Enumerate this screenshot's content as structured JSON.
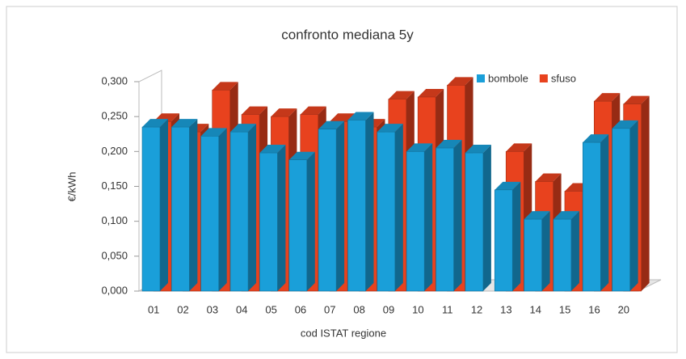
{
  "chart_data": {
    "type": "bar3d",
    "title": "confronto mediana 5y",
    "x_label": "cod ISTAT regione",
    "y_label": "€/kWh",
    "categories": [
      "01",
      "02",
      "03",
      "04",
      "05",
      "06",
      "07",
      "08",
      "09",
      "10",
      "11",
      "12",
      "13",
      "14",
      "15",
      "16",
      "20"
    ],
    "series": [
      {
        "name": "bombole",
        "color": "#1a9fd9",
        "values": [
          0.235,
          0.235,
          0.222,
          0.228,
          0.198,
          0.188,
          0.232,
          0.245,
          0.228,
          0.2,
          0.205,
          0.198,
          0.145,
          0.103,
          0.103,
          0.213,
          0.233
        ]
      },
      {
        "name": "sfuso",
        "color": "#e8421e",
        "values": [
          0.243,
          0.228,
          0.288,
          0.253,
          0.25,
          0.253,
          0.243,
          0.235,
          0.275,
          0.278,
          0.295,
          null,
          0.2,
          0.157,
          0.143,
          0.272,
          0.268
        ]
      }
    ],
    "ylim": [
      0,
      0.3
    ],
    "yticks": [
      {
        "value": 0,
        "label": "0,000"
      },
      {
        "value": 0.05,
        "label": "0,050"
      },
      {
        "value": 0.1,
        "label": "0,100"
      },
      {
        "value": 0.15,
        "label": "0,150"
      },
      {
        "value": 0.2,
        "label": "0,200"
      },
      {
        "value": 0.25,
        "label": "0,250"
      },
      {
        "value": 0.3,
        "label": "0,300"
      }
    ],
    "grid": false,
    "legend": "top-right"
  }
}
